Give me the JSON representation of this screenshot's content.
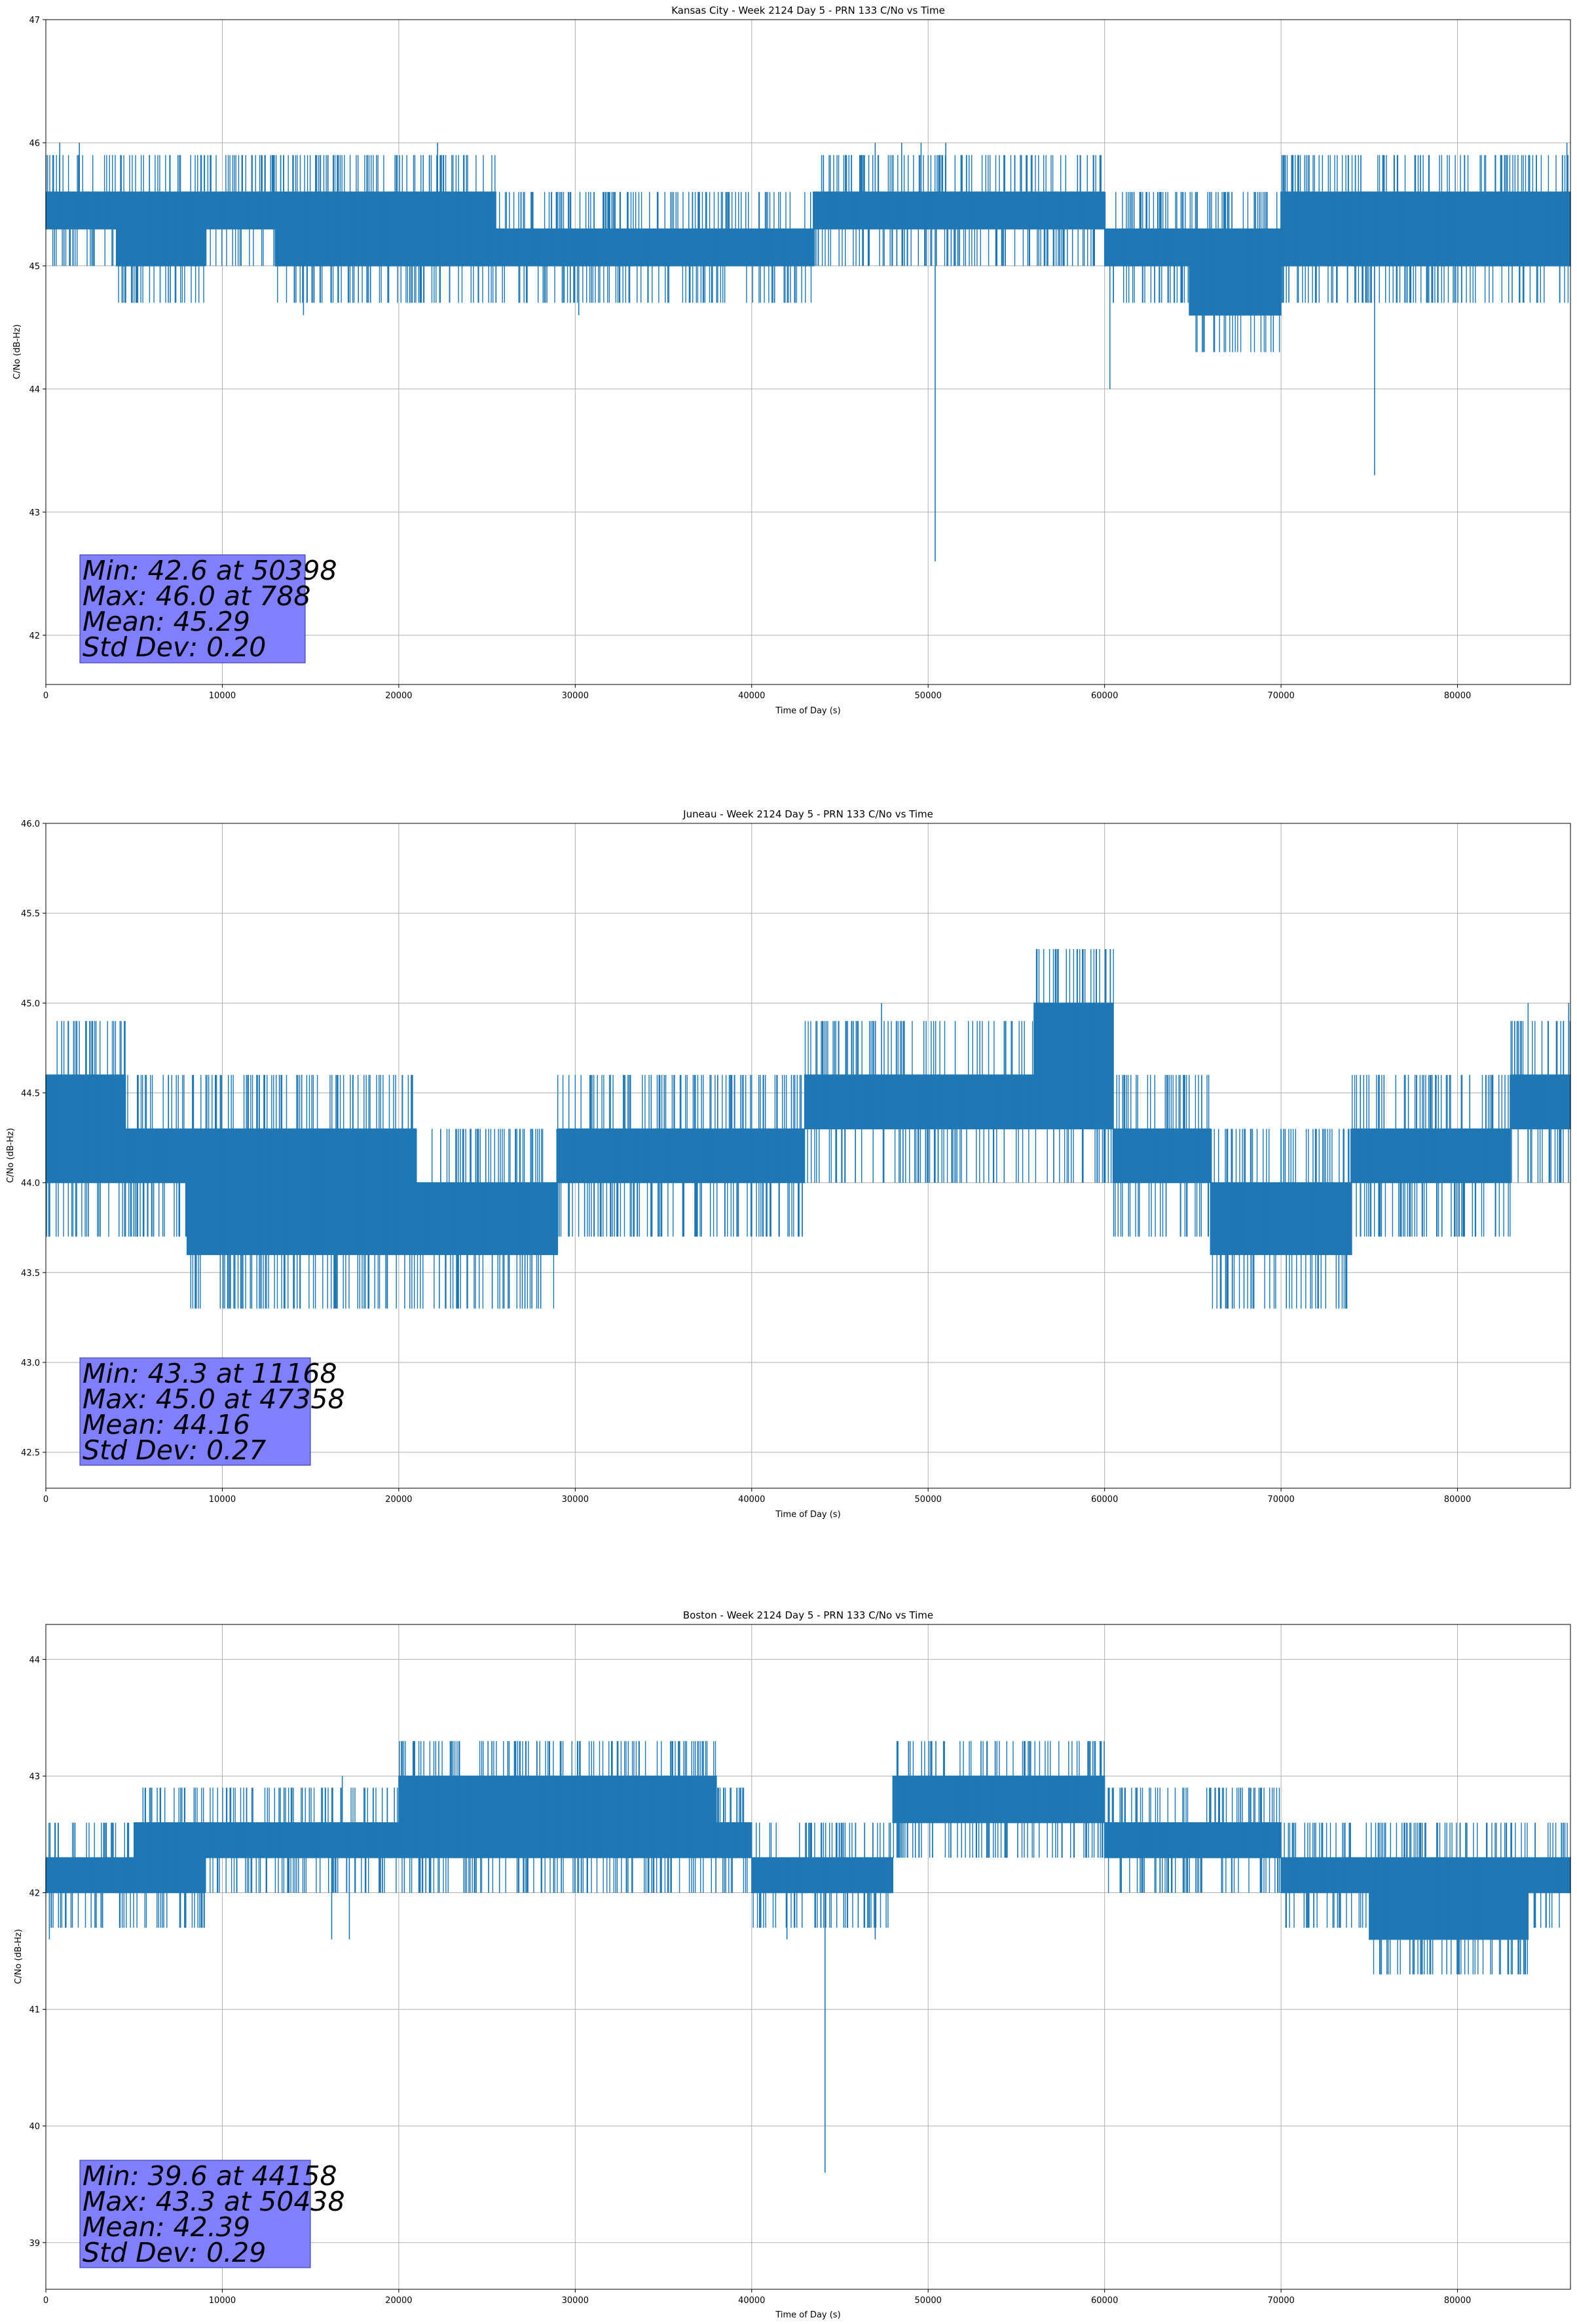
{
  "chart_data": [
    {
      "type": "line",
      "title": "Kansas City - Week 2124 Day 5 - PRN 133 C/No vs Time",
      "xlabel": "Time of Day (s)",
      "ylabel": "C/No (dB-Hz)",
      "xlim": [
        0,
        86400
      ],
      "ylim": [
        41.6,
        47.0
      ],
      "x_ticks": [
        0,
        10000,
        20000,
        30000,
        40000,
        50000,
        60000,
        70000,
        80000
      ],
      "y_ticks": [
        42,
        43,
        44,
        45,
        46,
        47
      ],
      "y_tick_labels": [
        "42",
        "43",
        "44",
        "45",
        "46",
        "47"
      ],
      "grid": true,
      "color": "#1f77b4",
      "segments": [
        {
          "x": [
            0,
            4000
          ],
          "levels": [
            45.3,
            45.6
          ]
        },
        {
          "x": [
            4000,
            9000
          ],
          "levels": [
            45.0,
            45.6
          ]
        },
        {
          "x": [
            9000,
            13000
          ],
          "levels": [
            45.3,
            45.6
          ]
        },
        {
          "x": [
            13000,
            25500
          ],
          "levels": [
            45.0,
            45.6
          ]
        },
        {
          "x": [
            25500,
            36000
          ],
          "levels": [
            45.0,
            45.3
          ]
        },
        {
          "x": [
            36000,
            43500
          ],
          "levels": [
            45.0,
            45.3
          ]
        },
        {
          "x": [
            43500,
            60000
          ],
          "levels": [
            45.3,
            45.6
          ]
        },
        {
          "x": [
            60000,
            64800
          ],
          "levels": [
            45.0,
            45.3
          ]
        },
        {
          "x": [
            64800,
            70000
          ],
          "levels": [
            44.6,
            45.3
          ]
        },
        {
          "x": [
            70000,
            86400
          ],
          "levels": [
            45.0,
            45.6
          ]
        }
      ],
      "spikes": [
        [
          788,
          46.0
        ],
        [
          1900,
          46.0
        ],
        [
          14600,
          44.6
        ],
        [
          22200,
          46.0
        ],
        [
          30200,
          44.6
        ],
        [
          47000,
          46.0
        ],
        [
          48500,
          46.0
        ],
        [
          49600,
          46.0
        ],
        [
          50398,
          42.6
        ],
        [
          51000,
          46.0
        ],
        [
          60300,
          44.0
        ],
        [
          75300,
          43.3
        ],
        [
          86200,
          46.0
        ]
      ],
      "stats": [
        "Min: 42.6 at 50398",
        "Max: 46.0 at 788",
        "Mean: 45.29",
        "Std Dev: 0.20"
      ]
    },
    {
      "type": "line",
      "title": "Juneau - Week 2124 Day 5 - PRN 133 C/No vs Time",
      "xlabel": "Time of Day (s)",
      "ylabel": "C/No (dB-Hz)",
      "xlim": [
        0,
        86400
      ],
      "ylim": [
        42.3,
        46.0
      ],
      "x_ticks": [
        0,
        10000,
        20000,
        30000,
        40000,
        50000,
        60000,
        70000,
        80000
      ],
      "y_ticks": [
        42.5,
        43.0,
        43.5,
        44.0,
        44.5,
        45.0,
        45.5,
        46.0
      ],
      "y_tick_labels": [
        "42.5",
        "43.0",
        "43.5",
        "44.0",
        "44.5",
        "45.0",
        "45.5",
        "46.0"
      ],
      "grid": true,
      "color": "#1f77b4",
      "segments": [
        {
          "x": [
            0,
            4500
          ],
          "levels": [
            44.0,
            44.6
          ]
        },
        {
          "x": [
            4500,
            8000
          ],
          "levels": [
            44.0,
            44.3
          ]
        },
        {
          "x": [
            8000,
            14000
          ],
          "levels": [
            43.6,
            44.3
          ]
        },
        {
          "x": [
            14000,
            21000
          ],
          "levels": [
            43.6,
            44.3
          ]
        },
        {
          "x": [
            21000,
            29000
          ],
          "levels": [
            43.6,
            44.0
          ]
        },
        {
          "x": [
            29000,
            43000
          ],
          "levels": [
            44.0,
            44.3
          ]
        },
        {
          "x": [
            43000,
            56000
          ],
          "levels": [
            44.3,
            44.6
          ]
        },
        {
          "x": [
            56000,
            60500
          ],
          "levels": [
            44.3,
            45.0
          ]
        },
        {
          "x": [
            60500,
            66000
          ],
          "levels": [
            44.0,
            44.3
          ]
        },
        {
          "x": [
            66000,
            74000
          ],
          "levels": [
            43.6,
            44.0
          ]
        },
        {
          "x": [
            74000,
            83000
          ],
          "levels": [
            44.0,
            44.3
          ]
        },
        {
          "x": [
            83000,
            86400
          ],
          "levels": [
            44.3,
            44.6
          ]
        }
      ],
      "spikes": [
        [
          11168,
          43.3
        ],
        [
          13500,
          43.3
        ],
        [
          14500,
          44.6
        ],
        [
          22300,
          43.3
        ],
        [
          25300,
          43.3
        ],
        [
          26200,
          43.3
        ],
        [
          27000,
          43.3
        ],
        [
          47358,
          45.0
        ],
        [
          67900,
          43.3
        ],
        [
          68300,
          43.3
        ],
        [
          70300,
          43.3
        ],
        [
          84000,
          45.0
        ],
        [
          86300,
          45.0
        ]
      ],
      "stats": [
        "Min: 43.3 at 11168",
        "Max: 45.0 at 47358",
        "Mean: 44.16",
        "Std Dev: 0.27"
      ]
    },
    {
      "type": "line",
      "title": "Boston - Week 2124 Day 5 - PRN 133 C/No vs Time",
      "xlabel": "Time of Day (s)",
      "ylabel": "C/No (dB-Hz)",
      "xlim": [
        0,
        86400
      ],
      "ylim": [
        38.6,
        44.3
      ],
      "x_ticks": [
        0,
        10000,
        20000,
        30000,
        40000,
        50000,
        60000,
        70000,
        80000
      ],
      "y_ticks": [
        39,
        40,
        41,
        42,
        43,
        44
      ],
      "y_tick_labels": [
        "39",
        "40",
        "41",
        "42",
        "43",
        "44"
      ],
      "grid": true,
      "color": "#1f77b4",
      "segments": [
        {
          "x": [
            0,
            5000
          ],
          "levels": [
            42.0,
            42.3
          ]
        },
        {
          "x": [
            5000,
            9000
          ],
          "levels": [
            42.0,
            42.6
          ]
        },
        {
          "x": [
            9000,
            20000
          ],
          "levels": [
            42.3,
            42.6
          ]
        },
        {
          "x": [
            20000,
            38000
          ],
          "levels": [
            42.3,
            43.0
          ]
        },
        {
          "x": [
            38000,
            40000
          ],
          "levels": [
            42.3,
            42.6
          ]
        },
        {
          "x": [
            40000,
            48000
          ],
          "levels": [
            42.0,
            42.3
          ]
        },
        {
          "x": [
            48000,
            60000
          ],
          "levels": [
            42.6,
            43.0
          ]
        },
        {
          "x": [
            60000,
            70000
          ],
          "levels": [
            42.3,
            42.6
          ]
        },
        {
          "x": [
            70000,
            75000
          ],
          "levels": [
            42.0,
            42.3
          ]
        },
        {
          "x": [
            75000,
            84000
          ],
          "levels": [
            41.6,
            42.3
          ]
        },
        {
          "x": [
            84000,
            86400
          ],
          "levels": [
            42.0,
            42.3
          ]
        }
      ],
      "spikes": [
        [
          200,
          41.6
        ],
        [
          16200,
          41.6
        ],
        [
          17200,
          41.6
        ],
        [
          16800,
          43.0
        ],
        [
          42000,
          41.6
        ],
        [
          44158,
          39.6
        ],
        [
          47000,
          41.6
        ],
        [
          50438,
          43.3
        ],
        [
          53800,
          43.3
        ],
        [
          76000,
          41.3
        ],
        [
          78000,
          41.3
        ],
        [
          86000,
          42.6
        ]
      ],
      "stats": [
        "Min: 39.6 at 44158",
        "Max: 43.3 at 50438",
        "Mean: 42.39",
        "Std Dev: 0.29"
      ]
    }
  ]
}
